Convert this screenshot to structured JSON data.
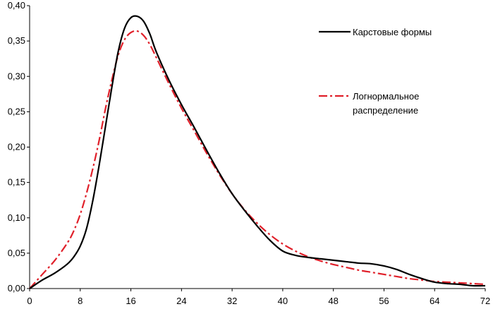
{
  "chart_data": {
    "type": "line",
    "title": "",
    "xlabel": "",
    "ylabel": "",
    "xlim": [
      0,
      72
    ],
    "ylim": [
      0,
      0.4
    ],
    "x_ticks": [
      {
        "value": 0,
        "label": "0"
      },
      {
        "value": 8,
        "label": "8"
      },
      {
        "value": 16,
        "label": "16"
      },
      {
        "value": 24,
        "label": "24"
      },
      {
        "value": 32,
        "label": "32"
      },
      {
        "value": 40,
        "label": "40"
      },
      {
        "value": 48,
        "label": "48"
      },
      {
        "value": 56,
        "label": "56"
      },
      {
        "value": 64,
        "label": "64"
      },
      {
        "value": 72,
        "label": "72"
      }
    ],
    "y_ticks": [
      {
        "value": 0.0,
        "label": "0,00"
      },
      {
        "value": 0.05,
        "label": "0,05"
      },
      {
        "value": 0.1,
        "label": "0,10"
      },
      {
        "value": 0.15,
        "label": "0,15"
      },
      {
        "value": 0.2,
        "label": "0,20"
      },
      {
        "value": 0.25,
        "label": "0,25"
      },
      {
        "value": 0.3,
        "label": "0,30"
      },
      {
        "value": 0.35,
        "label": "0,35"
      },
      {
        "value": 0.4,
        "label": "0,40"
      }
    ],
    "grid": false,
    "legend_position": "top-right",
    "series": [
      {
        "name": "Карстовые формы",
        "label_lines": [
          "Карстовые формы"
        ],
        "color": "#000000",
        "style": "solid",
        "x": [
          0,
          2,
          4,
          6,
          7,
          8,
          9,
          10,
          11,
          12,
          13,
          14,
          15,
          16,
          17,
          18,
          19,
          20,
          22,
          24,
          26,
          28,
          30,
          32,
          34,
          36,
          38,
          40,
          42,
          44,
          46,
          48,
          50,
          52,
          54,
          56,
          58,
          60,
          62,
          64,
          66,
          68,
          70,
          72
        ],
        "y": [
          0.0,
          0.012,
          0.022,
          0.035,
          0.045,
          0.06,
          0.085,
          0.125,
          0.175,
          0.23,
          0.285,
          0.335,
          0.368,
          0.383,
          0.385,
          0.378,
          0.36,
          0.335,
          0.295,
          0.26,
          0.228,
          0.195,
          0.163,
          0.134,
          0.11,
          0.088,
          0.068,
          0.053,
          0.047,
          0.044,
          0.042,
          0.04,
          0.038,
          0.036,
          0.035,
          0.032,
          0.027,
          0.02,
          0.014,
          0.009,
          0.007,
          0.006,
          0.004,
          0.004
        ]
      },
      {
        "name": "Логнормальное распределение",
        "label_lines": [
          "Логнормальное",
          "распределение"
        ],
        "color": "#e0202a",
        "style": "dashdot",
        "x": [
          0,
          2,
          4,
          6,
          7,
          8,
          9,
          10,
          11,
          12,
          13,
          14,
          15,
          16,
          17,
          18,
          19,
          20,
          22,
          24,
          26,
          28,
          30,
          32,
          34,
          36,
          38,
          40,
          42,
          44,
          46,
          48,
          50,
          52,
          54,
          56,
          58,
          60,
          62,
          64,
          66,
          68,
          70,
          72
        ],
        "y": [
          0.0,
          0.02,
          0.04,
          0.065,
          0.082,
          0.105,
          0.135,
          0.17,
          0.21,
          0.255,
          0.295,
          0.33,
          0.352,
          0.362,
          0.364,
          0.358,
          0.345,
          0.327,
          0.29,
          0.255,
          0.223,
          0.191,
          0.161,
          0.134,
          0.111,
          0.092,
          0.076,
          0.063,
          0.053,
          0.045,
          0.039,
          0.034,
          0.03,
          0.026,
          0.023,
          0.02,
          0.017,
          0.014,
          0.012,
          0.01,
          0.009,
          0.008,
          0.007,
          0.006
        ]
      }
    ]
  }
}
